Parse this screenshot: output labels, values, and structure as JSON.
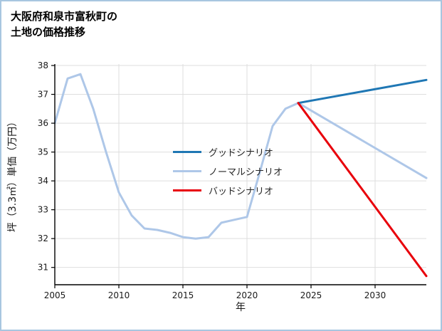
{
  "page": {
    "title_line1": "大阪府和泉市富秋町の",
    "title_line2": "土地の価格推移"
  },
  "chart_data": {
    "type": "line",
    "title": "大阪府和泉市富秋町の土地の価格推移",
    "xlabel": "年",
    "ylabel": "坪（3.3㎡）単価（万円）",
    "xlim": [
      2005,
      2034
    ],
    "ylim": [
      30.4,
      38.05
    ],
    "x_ticks": [
      2005,
      2010,
      2015,
      2020,
      2025,
      2030
    ],
    "y_ticks": [
      31,
      32,
      33,
      34,
      35,
      36,
      37,
      38
    ],
    "grid": true,
    "grid_color": "#dedede",
    "axis_color": "#000000",
    "tick_label_color": "#1a1a1a",
    "legend_position": "center-left",
    "series": [
      {
        "name": "グッドシナリオ",
        "key": "good",
        "color": "#1f77b4",
        "width": 3,
        "x": [
          2024,
          2034
        ],
        "y": [
          36.7,
          37.5
        ]
      },
      {
        "name": "ノーマルシナリオ",
        "key": "normal",
        "color": "#aec7e8",
        "width": 3,
        "x": [
          2005,
          2006,
          2007,
          2008,
          2009,
          2010,
          2011,
          2012,
          2013,
          2014,
          2015,
          2016,
          2017,
          2018,
          2019,
          2020,
          2021,
          2022,
          2023,
          2024,
          2034
        ],
        "y": [
          36.0,
          37.55,
          37.7,
          36.5,
          35.0,
          33.6,
          32.8,
          32.35,
          32.3,
          32.2,
          32.05,
          32.0,
          32.05,
          32.55,
          32.65,
          32.75,
          34.3,
          35.9,
          36.5,
          36.7,
          34.1
        ]
      },
      {
        "name": "バッドシナリオ",
        "key": "bad",
        "color": "#e8000b",
        "width": 3,
        "x": [
          2024,
          2034
        ],
        "y": [
          36.7,
          30.7
        ]
      }
    ]
  }
}
